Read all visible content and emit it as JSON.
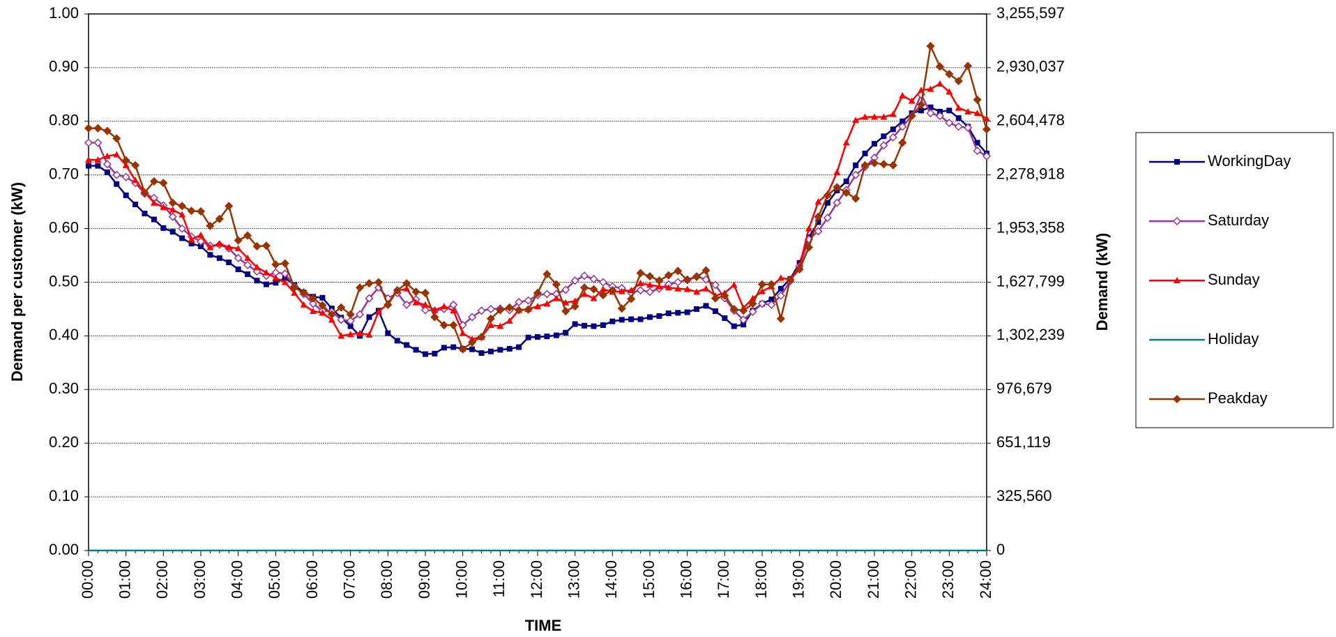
{
  "chart_data": {
    "type": "line",
    "x_label": "TIME",
    "y_label": "Demand per customer (kW)",
    "y2_label": "Demand (kW)",
    "categories": [
      "00:00",
      null,
      null,
      null,
      "01:00",
      null,
      null,
      null,
      "02:00",
      null,
      null,
      null,
      "03:00",
      null,
      null,
      null,
      "04:00",
      null,
      null,
      null,
      "05:00",
      null,
      null,
      null,
      "06:00",
      null,
      null,
      null,
      "07:00",
      null,
      null,
      null,
      "08:00",
      null,
      null,
      null,
      "09:00",
      null,
      null,
      null,
      "10:00",
      null,
      null,
      null,
      "11:00",
      null,
      null,
      null,
      "12:00",
      null,
      null,
      null,
      "13:00",
      null,
      null,
      null,
      "14:00",
      null,
      null,
      null,
      "15:00",
      null,
      null,
      null,
      "16:00",
      null,
      null,
      null,
      "17:00",
      null,
      null,
      null,
      "18:00",
      null,
      null,
      null,
      "19:00",
      null,
      null,
      null,
      "20:00",
      null,
      null,
      null,
      "21:00",
      null,
      null,
      null,
      "22:00",
      null,
      null,
      null,
      "23:00",
      null,
      null,
      null,
      "24:00"
    ],
    "ylim": [
      0,
      1
    ],
    "yticks": [
      {
        "value": 0,
        "label": "0.00"
      },
      {
        "value": 0.1,
        "label": "0.10"
      },
      {
        "value": 0.2,
        "label": "0.20"
      },
      {
        "value": 0.3,
        "label": "0.30"
      },
      {
        "value": 0.4,
        "label": "0.40"
      },
      {
        "value": 0.5,
        "label": "0.50"
      },
      {
        "value": 0.6,
        "label": "0.60"
      },
      {
        "value": 0.7,
        "label": "0.70"
      },
      {
        "value": 0.8,
        "label": "0.80"
      },
      {
        "value": 0.9,
        "label": "0.90"
      },
      {
        "value": 1,
        "label": "1.00"
      }
    ],
    "y2lim": [
      0,
      3255597
    ],
    "y2ticks": [
      0,
      {
        "value": 325560,
        "label": "325,560"
      },
      {
        "value": 651119,
        "label": "651,119"
      },
      {
        "value": 976679,
        "label": "976,679"
      },
      {
        "value": 1302239,
        "label": "1,302,239"
      },
      {
        "value": 1627799,
        "label": "1,627,799"
      },
      {
        "value": 1953358,
        "label": "1,953,358"
      },
      {
        "value": 2278918,
        "label": "2,278,918"
      },
      {
        "value": 2604478,
        "label": "2,604,478"
      },
      {
        "value": 2930037,
        "label": "2,930,037"
      },
      {
        "value": 3255597,
        "label": "3,255,597"
      }
    ],
    "grid": true,
    "legend": "right",
    "series": [
      {
        "name": "WorkingDay",
        "color": "#000080",
        "marker": "square",
        "values": [
          0.717,
          0.717,
          0.705,
          0.683,
          0.662,
          0.645,
          0.628,
          0.617,
          0.601,
          0.594,
          0.582,
          0.572,
          0.567,
          0.551,
          0.545,
          0.537,
          0.524,
          0.515,
          0.503,
          0.496,
          0.499,
          0.508,
          0.495,
          0.481,
          0.473,
          0.471,
          0.451,
          0.434,
          0.418,
          0.4,
          0.435,
          0.447,
          0.405,
          0.391,
          0.383,
          0.374,
          0.366,
          0.367,
          0.378,
          0.379,
          0.376,
          0.375,
          0.368,
          0.371,
          0.374,
          0.376,
          0.379,
          0.397,
          0.398,
          0.399,
          0.401,
          0.406,
          0.422,
          0.419,
          0.418,
          0.42,
          0.427,
          0.43,
          0.431,
          0.431,
          0.435,
          0.437,
          0.442,
          0.443,
          0.444,
          0.45,
          0.456,
          0.446,
          0.433,
          0.418,
          0.421,
          0.447,
          0.46,
          0.468,
          0.488,
          0.506,
          0.536,
          0.584,
          0.612,
          0.648,
          0.671,
          0.688,
          0.718,
          0.74,
          0.758,
          0.772,
          0.785,
          0.8,
          0.815,
          0.82,
          0.826,
          0.818,
          0.82,
          0.806,
          0.79,
          0.76,
          0.74
        ]
      },
      {
        "name": "Saturday",
        "color": "#993399",
        "marker": "diamond",
        "values": [
          0.76,
          0.76,
          0.72,
          0.7,
          0.696,
          0.685,
          0.665,
          0.657,
          0.643,
          0.622,
          0.6,
          0.585,
          0.576,
          0.568,
          0.57,
          0.563,
          0.545,
          0.532,
          0.52,
          0.512,
          0.518,
          0.516,
          0.492,
          0.478,
          0.46,
          0.447,
          0.445,
          0.43,
          0.428,
          0.44,
          0.47,
          0.49,
          0.47,
          0.48,
          0.458,
          0.468,
          0.448,
          0.447,
          0.45,
          0.458,
          0.42,
          0.435,
          0.447,
          0.45,
          0.451,
          0.448,
          0.463,
          0.466,
          0.476,
          0.478,
          0.478,
          0.486,
          0.503,
          0.512,
          0.506,
          0.5,
          0.492,
          0.489,
          0.48,
          0.485,
          0.482,
          0.488,
          0.496,
          0.5,
          0.505,
          0.511,
          0.505,
          0.495,
          0.47,
          0.447,
          0.43,
          0.445,
          0.46,
          0.458,
          0.475,
          0.502,
          0.53,
          0.58,
          0.595,
          0.62,
          0.648,
          0.672,
          0.7,
          0.715,
          0.732,
          0.755,
          0.77,
          0.79,
          0.81,
          0.85,
          0.815,
          0.81,
          0.797,
          0.79,
          0.788,
          0.745,
          0.735
        ]
      },
      {
        "name": "Sunday",
        "color": "#ff0000",
        "marker": "triangle",
        "values": [
          0.728,
          0.728,
          0.735,
          0.738,
          0.718,
          0.69,
          0.668,
          0.648,
          0.64,
          0.635,
          0.626,
          0.58,
          0.588,
          0.565,
          0.572,
          0.565,
          0.563,
          0.545,
          0.528,
          0.518,
          0.508,
          0.5,
          0.48,
          0.458,
          0.446,
          0.443,
          0.43,
          0.4,
          0.403,
          0.405,
          0.402,
          0.445,
          0.46,
          0.484,
          0.488,
          0.462,
          0.458,
          0.448,
          0.455,
          0.447,
          0.405,
          0.394,
          0.398,
          0.42,
          0.418,
          0.428,
          0.448,
          0.45,
          0.455,
          0.46,
          0.47,
          0.462,
          0.465,
          0.478,
          0.47,
          0.487,
          0.482,
          0.483,
          0.485,
          0.498,
          0.495,
          0.492,
          0.49,
          0.488,
          0.487,
          0.482,
          0.488,
          0.475,
          0.48,
          0.495,
          0.452,
          0.47,
          0.483,
          0.492,
          0.508,
          0.505,
          0.53,
          0.6,
          0.65,
          0.665,
          0.705,
          0.76,
          0.802,
          0.808,
          0.808,
          0.808,
          0.813,
          0.848,
          0.838,
          0.858,
          0.86,
          0.87,
          0.855,
          0.825,
          0.818,
          0.815,
          0.805
        ]
      },
      {
        "name": "Holiday",
        "color": "#008080",
        "marker": "none",
        "values": [
          0,
          0,
          0,
          0,
          0,
          0,
          0,
          0,
          0,
          0,
          0,
          0,
          0,
          0,
          0,
          0,
          0,
          0,
          0,
          0,
          0,
          0,
          0,
          0,
          0,
          0,
          0,
          0,
          0,
          0,
          0,
          0,
          0,
          0,
          0,
          0,
          0,
          0,
          0,
          0,
          0,
          0,
          0,
          0,
          0,
          0,
          0,
          0,
          0,
          0,
          0,
          0,
          0,
          0,
          0,
          0,
          0,
          0,
          0,
          0,
          0,
          0,
          0,
          0,
          0,
          0,
          0,
          0,
          0,
          0,
          0,
          0,
          0,
          0,
          0,
          0,
          0,
          0,
          0,
          0,
          0,
          0,
          0,
          0,
          0,
          0,
          0,
          0,
          0,
          0,
          0,
          0,
          0,
          0,
          0,
          0,
          0
        ]
      },
      {
        "name": "Peakday",
        "color": "#993300",
        "marker": "diamond",
        "values": [
          0.787,
          0.787,
          0.782,
          0.768,
          0.727,
          0.718,
          0.667,
          0.688,
          0.685,
          0.648,
          0.642,
          0.633,
          0.632,
          0.605,
          0.618,
          0.642,
          0.578,
          0.587,
          0.567,
          0.568,
          0.533,
          0.535,
          0.49,
          0.481,
          0.47,
          0.457,
          0.44,
          0.453,
          0.44,
          0.49,
          0.498,
          0.5,
          0.458,
          0.485,
          0.498,
          0.482,
          0.48,
          0.435,
          0.42,
          0.42,
          0.375,
          0.388,
          0.398,
          0.432,
          0.448,
          0.453,
          0.448,
          0.449,
          0.48,
          0.515,
          0.496,
          0.446,
          0.455,
          0.49,
          0.487,
          0.476,
          0.485,
          0.451,
          0.469,
          0.517,
          0.511,
          0.503,
          0.513,
          0.521,
          0.504,
          0.51,
          0.522,
          0.47,
          0.475,
          0.45,
          0.447,
          0.46,
          0.496,
          0.496,
          0.432,
          0.505,
          0.524,
          0.565,
          0.622,
          0.662,
          0.677,
          0.667,
          0.656,
          0.718,
          0.722,
          0.72,
          0.718,
          0.76,
          0.81,
          0.831,
          0.94,
          0.902,
          0.888,
          0.875,
          0.903,
          0.84,
          0.785
        ]
      }
    ]
  }
}
